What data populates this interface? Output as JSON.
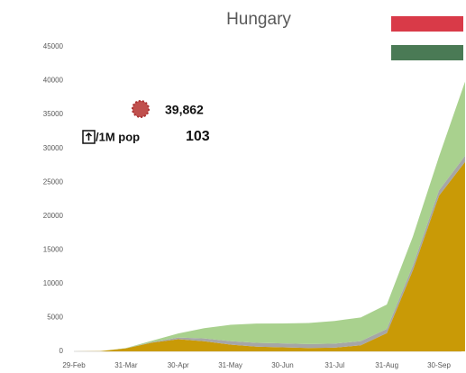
{
  "chart_data": {
    "type": "stacked_area",
    "title": "Hungary",
    "annotations": [
      "39,862",
      "/1M pop",
      "103"
    ],
    "categories": [
      "29-Feb",
      null,
      "31-Mar",
      null,
      "30-Apr",
      null,
      "31-May",
      null,
      "30-Jun",
      null,
      "31-Jul",
      null,
      "31-Aug",
      null,
      "30-Sep",
      null
    ],
    "series": [
      {
        "color": "#c99a06",
        "values": [
          0,
          30,
          450,
          1300,
          1800,
          1500,
          1000,
          700,
          600,
          500,
          550,
          900,
          2700,
          12000,
          23000,
          28000
        ]
      },
      {
        "color": "#a6a6a6",
        "values": [
          0,
          0,
          15,
          80,
          250,
          420,
          520,
          560,
          580,
          590,
          600,
          610,
          620,
          680,
          780,
          900
        ]
      },
      {
        "color": "#a9d18e",
        "values": [
          0,
          0,
          30,
          200,
          600,
          1500,
          2400,
          2850,
          2950,
          3100,
          3350,
          3500,
          3600,
          4300,
          5000,
          10962
        ]
      }
    ],
    "ylim": [
      0,
      45000
    ],
    "yticks": [
      0,
      5000,
      10000,
      15000,
      20000,
      25000,
      30000,
      35000,
      40000,
      45000
    ],
    "grid": false
  }
}
